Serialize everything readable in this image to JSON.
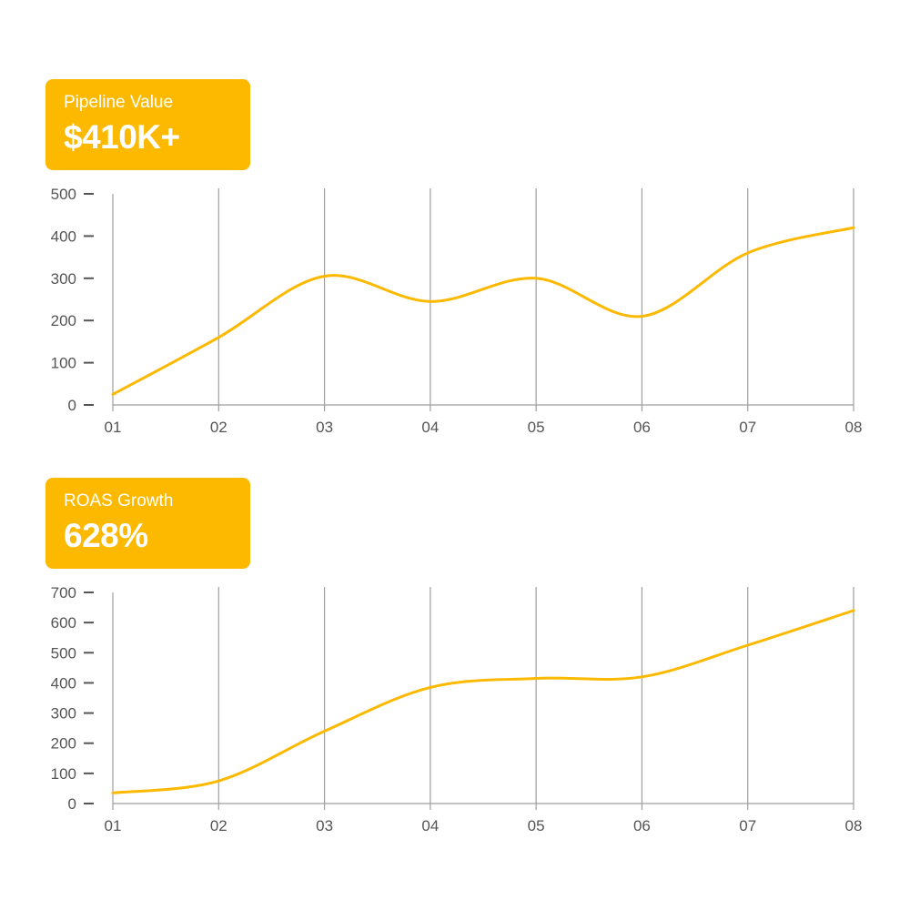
{
  "colors": {
    "accent": "#FDB900",
    "grid": "#9e9e9e",
    "text": "#555555"
  },
  "charts": [
    {
      "card": {
        "label": "Pipeline Value",
        "value": "$410K+"
      },
      "chart_data": {
        "type": "line",
        "x": [
          "01",
          "02",
          "03",
          "04",
          "05",
          "06",
          "07",
          "08"
        ],
        "series": [
          {
            "values": [
              25,
              160,
              305,
              245,
              300,
              210,
              360,
              420
            ]
          }
        ],
        "ylim": [
          0,
          500
        ],
        "yticks": [
          0,
          100,
          200,
          300,
          400,
          500
        ],
        "grid": "vertical"
      }
    },
    {
      "card": {
        "label": "ROAS Growth",
        "value": "628%"
      },
      "chart_data": {
        "type": "line",
        "x": [
          "01",
          "02",
          "03",
          "04",
          "05",
          "06",
          "07",
          "08"
        ],
        "series": [
          {
            "values": [
              35,
              75,
              240,
              385,
              415,
              420,
              525,
              640
            ]
          }
        ],
        "ylim": [
          0,
          700
        ],
        "yticks": [
          0,
          100,
          200,
          300,
          400,
          500,
          600,
          700
        ],
        "grid": "vertical"
      }
    }
  ]
}
